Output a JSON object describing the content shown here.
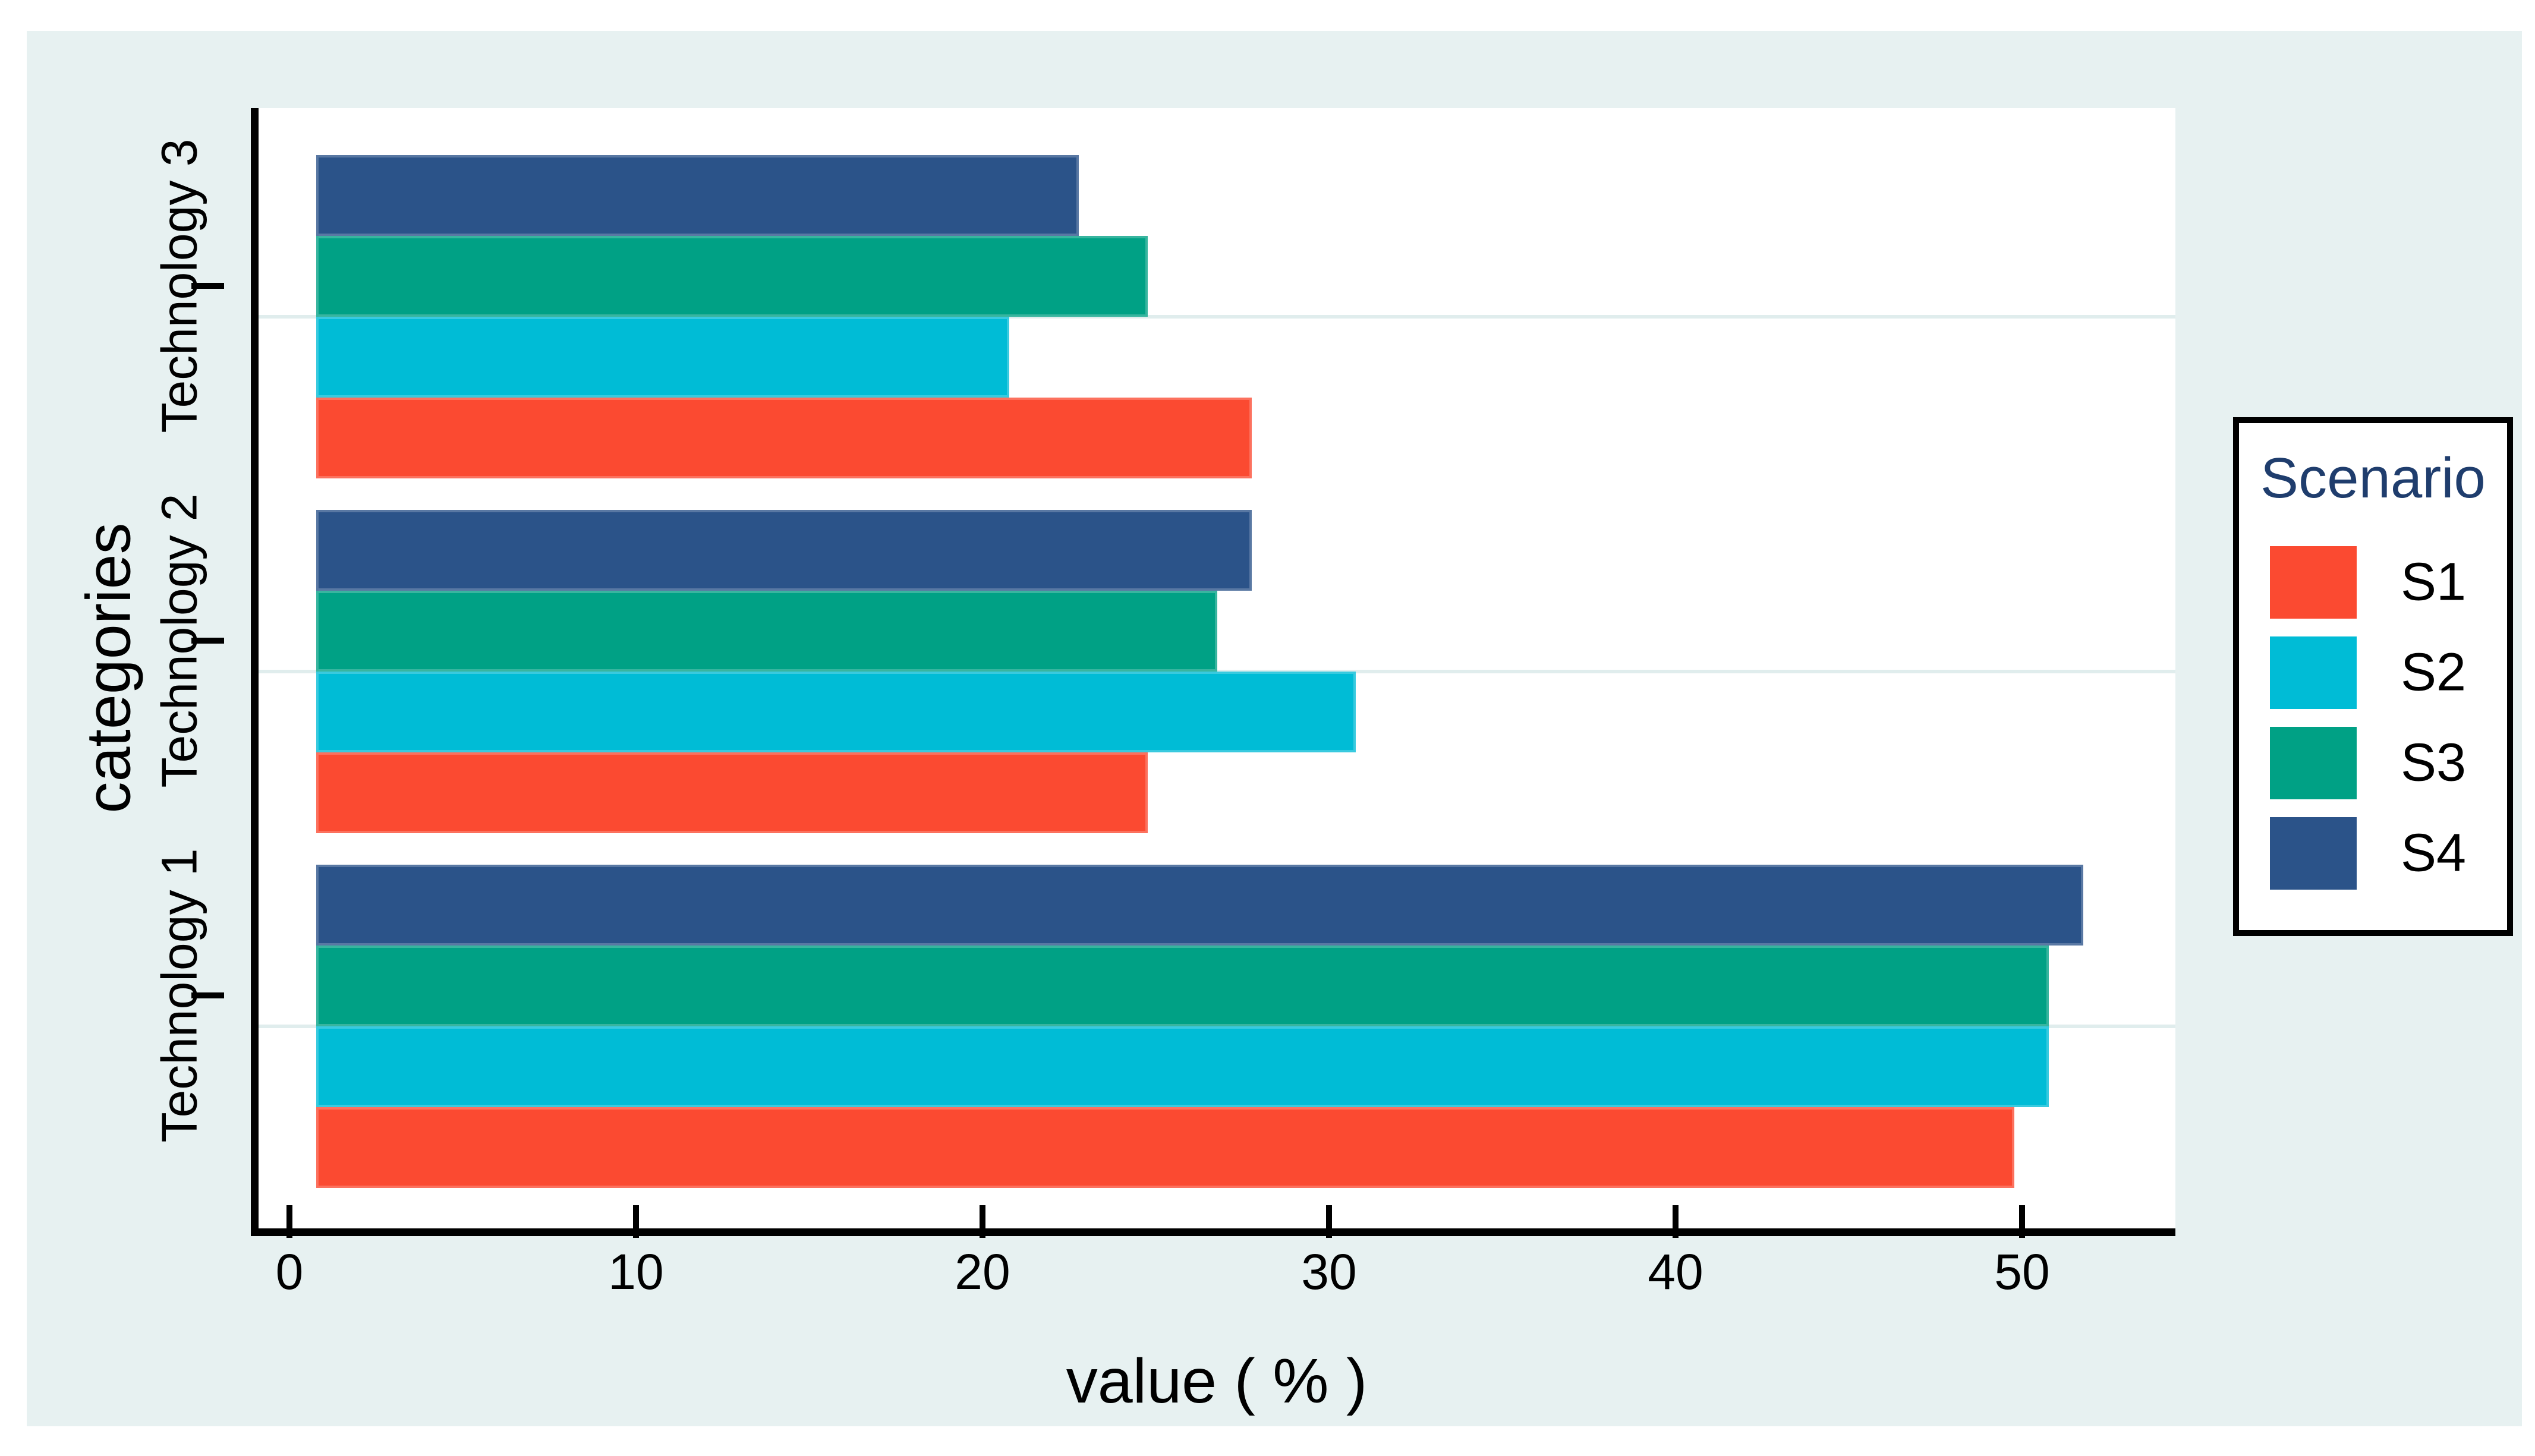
{
  "chart_data": {
    "type": "bar",
    "orientation": "horizontal",
    "title": "",
    "xlabel": "value ( % )",
    "ylabel": "categories",
    "legend_title": "Scenario",
    "legend_position": "right of plot",
    "categories": [
      "Technology 1",
      "Technology 2",
      "Technology 3"
    ],
    "category_order_top_to_bottom": [
      "Technology 3",
      "Technology 2",
      "Technology 1"
    ],
    "series_order_top_to_bottom_within_group": [
      "S4",
      "S3",
      "S2",
      "S1"
    ],
    "x_ticks": [
      0,
      10,
      20,
      30,
      40,
      50
    ],
    "xlim": [
      -1.7,
      53.6
    ],
    "grid": "horizontal gridlines at category tick positions",
    "series": [
      {
        "name": "S1",
        "color": "#fb4a31",
        "values": [
          49,
          24,
          27
        ]
      },
      {
        "name": "S2",
        "color": "#00bcd6",
        "values": [
          50,
          30,
          20
        ]
      },
      {
        "name": "S3",
        "color": "#00a185",
        "values": [
          50,
          26,
          24
        ]
      },
      {
        "name": "S4",
        "color": "#2b5389",
        "values": [
          51,
          27,
          22
        ]
      }
    ]
  },
  "colors": {
    "outer_background": "#ffffff",
    "panel_background": "#e7f1f1",
    "plot_background": "#ffffff",
    "axis": "#000000",
    "tick_label": "#000000",
    "gridline": "#e0eded",
    "legend_background": "#ffffff",
    "legend_border": "#000000",
    "legend_title_color": "#1f3d6d"
  }
}
